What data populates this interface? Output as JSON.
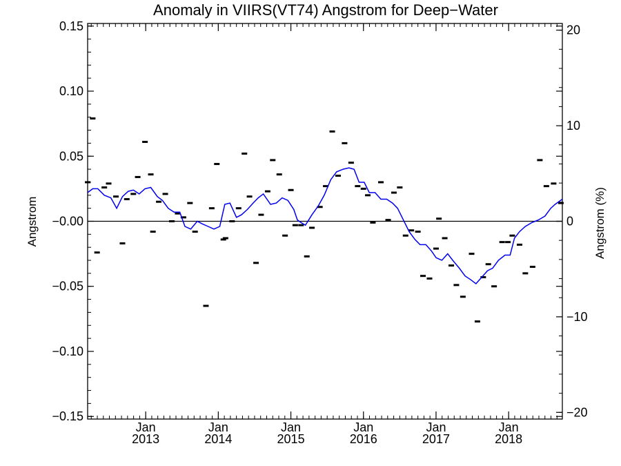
{
  "chart_data": {
    "type": "line",
    "title": "Anomaly in VIIRS(VT74) Angstrom for Deep−Water",
    "ylabel": "Angstrom",
    "y2label": "Angstrom (%)",
    "xlabel": "",
    "xlim": [
      2012.0,
      2018.54
    ],
    "ylim": [
      -0.152,
      0.152
    ],
    "y2lim": [
      -20.7,
      20.7
    ],
    "grid": false,
    "zero_line": true,
    "x_ticks": [
      {
        "month": "Jan",
        "year": "2013",
        "x": 2012.8
      },
      {
        "month": "Jan",
        "year": "2014",
        "x": 2013.8
      },
      {
        "month": "Jan",
        "year": "2015",
        "x": 2014.8
      },
      {
        "month": "Jan",
        "year": "2016",
        "x": 2015.8
      },
      {
        "month": "Jan",
        "year": "2017",
        "x": 2016.8
      },
      {
        "month": "Jan",
        "year": "2018",
        "x": 2017.8
      }
    ],
    "y_ticks": [
      {
        "value": 0.15,
        "label": "0.15"
      },
      {
        "value": 0.1,
        "label": "0.10"
      },
      {
        "value": 0.05,
        "label": "0.05"
      },
      {
        "value": 0.0,
        "label": "−0.00"
      },
      {
        "value": -0.05,
        "label": "−0.05"
      },
      {
        "value": -0.1,
        "label": "−0.10"
      },
      {
        "value": -0.15,
        "label": "−0.15"
      }
    ],
    "y2_ticks": [
      {
        "value": 20,
        "label": "20"
      },
      {
        "value": 10,
        "label": "10"
      },
      {
        "value": 0,
        "label": "0"
      },
      {
        "value": -10,
        "label": "−10"
      },
      {
        "value": -20,
        "label": "−20"
      }
    ],
    "series": [
      {
        "kind": "markers",
        "color": "#000000",
        "points": [
          [
            2012.0,
            0.03
          ],
          [
            2012.07,
            0.079
          ],
          [
            2012.13,
            -0.024
          ],
          [
            2012.23,
            0.026
          ],
          [
            2012.29,
            0.029
          ],
          [
            2012.39,
            0.019
          ],
          [
            2012.48,
            -0.017
          ],
          [
            2012.54,
            0.017
          ],
          [
            2012.63,
            0.021
          ],
          [
            2012.69,
            0.034
          ],
          [
            2012.79,
            0.061
          ],
          [
            2012.87,
            0.036
          ],
          [
            2012.9,
            -0.008
          ],
          [
            2012.98,
            0.015
          ],
          [
            2013.07,
            0.021
          ],
          [
            2013.16,
            0.0
          ],
          [
            2013.24,
            0.006
          ],
          [
            2013.32,
            0.003
          ],
          [
            2013.41,
            0.014
          ],
          [
            2013.48,
            -0.008
          ],
          [
            2013.63,
            -0.065
          ],
          [
            2013.71,
            0.01
          ],
          [
            2013.78,
            0.044
          ],
          [
            2013.87,
            -0.014
          ],
          [
            2013.9,
            -0.013
          ],
          [
            2013.99,
            0.0
          ],
          [
            2014.08,
            0.01
          ],
          [
            2014.16,
            0.052
          ],
          [
            2014.23,
            0.019
          ],
          [
            2014.32,
            -0.032
          ],
          [
            2014.39,
            0.005
          ],
          [
            2014.48,
            0.023
          ],
          [
            2014.55,
            0.047
          ],
          [
            2014.64,
            0.036
          ],
          [
            2014.72,
            -0.011
          ],
          [
            2014.8,
            0.024
          ],
          [
            2014.86,
            -0.003
          ],
          [
            2014.94,
            -0.003
          ],
          [
            2015.02,
            -0.027
          ],
          [
            2015.09,
            -0.005
          ],
          [
            2015.2,
            0.011
          ],
          [
            2015.28,
            0.027
          ],
          [
            2015.37,
            0.069
          ],
          [
            2015.45,
            0.035
          ],
          [
            2015.54,
            0.06
          ],
          [
            2015.63,
            0.045
          ],
          [
            2015.72,
            0.027
          ],
          [
            2015.8,
            0.025
          ],
          [
            2015.86,
            0.02
          ],
          [
            2015.93,
            -0.001
          ],
          [
            2016.04,
            0.03
          ],
          [
            2016.14,
            0.001
          ],
          [
            2016.22,
            0.022
          ],
          [
            2016.3,
            0.026
          ],
          [
            2016.38,
            -0.011
          ],
          [
            2016.46,
            -0.007
          ],
          [
            2016.55,
            -0.008
          ],
          [
            2016.62,
            -0.042
          ],
          [
            2016.71,
            -0.044
          ],
          [
            2016.8,
            -0.021
          ],
          [
            2016.84,
            0.002
          ],
          [
            2016.92,
            -0.013
          ],
          [
            2017.01,
            -0.034
          ],
          [
            2017.08,
            -0.049
          ],
          [
            2017.17,
            -0.058
          ],
          [
            2017.29,
            -0.025
          ],
          [
            2017.37,
            -0.077
          ],
          [
            2017.45,
            -0.043
          ],
          [
            2017.52,
            -0.033
          ],
          [
            2017.6,
            -0.05
          ],
          [
            2017.71,
            -0.016
          ],
          [
            2017.79,
            -0.016
          ],
          [
            2017.85,
            -0.011
          ],
          [
            2017.95,
            -0.018
          ],
          [
            2018.03,
            -0.04
          ],
          [
            2018.13,
            -0.035
          ],
          [
            2018.23,
            0.047
          ],
          [
            2018.32,
            0.027
          ],
          [
            2018.42,
            0.029
          ],
          [
            2018.52,
            0.014
          ]
        ]
      },
      {
        "kind": "line",
        "color": "#0000ee",
        "points": [
          [
            2012.0,
            0.022
          ],
          [
            2012.07,
            0.025
          ],
          [
            2012.14,
            0.025
          ],
          [
            2012.23,
            0.02
          ],
          [
            2012.32,
            0.018
          ],
          [
            2012.4,
            0.01
          ],
          [
            2012.48,
            0.019
          ],
          [
            2012.56,
            0.023
          ],
          [
            2012.63,
            0.024
          ],
          [
            2012.71,
            0.021
          ],
          [
            2012.79,
            0.025
          ],
          [
            2012.87,
            0.026
          ],
          [
            2012.96,
            0.019
          ],
          [
            2013.03,
            0.016
          ],
          [
            2013.11,
            0.01
          ],
          [
            2013.19,
            0.007
          ],
          [
            2013.27,
            0.007
          ],
          [
            2013.34,
            -0.004
          ],
          [
            2013.42,
            -0.006
          ],
          [
            2013.51,
            0.0
          ],
          [
            2013.58,
            -0.002
          ],
          [
            2013.66,
            -0.004
          ],
          [
            2013.74,
            -0.006
          ],
          [
            2013.82,
            -0.004
          ],
          [
            2013.89,
            0.013
          ],
          [
            2013.96,
            0.014
          ],
          [
            2014.05,
            0.003
          ],
          [
            2014.12,
            0.005
          ],
          [
            2014.2,
            0.009
          ],
          [
            2014.28,
            0.014
          ],
          [
            2014.35,
            0.018
          ],
          [
            2014.42,
            0.021
          ],
          [
            2014.52,
            0.013
          ],
          [
            2014.6,
            0.014
          ],
          [
            2014.68,
            0.018
          ],
          [
            2014.76,
            0.016
          ],
          [
            2014.84,
            0.009
          ],
          [
            2014.89,
            0.001
          ],
          [
            2014.94,
            -0.001
          ],
          [
            2015.0,
            -0.003
          ],
          [
            2015.09,
            0.005
          ],
          [
            2015.18,
            0.012
          ],
          [
            2015.26,
            0.02
          ],
          [
            2015.35,
            0.032
          ],
          [
            2015.43,
            0.038
          ],
          [
            2015.52,
            0.04
          ],
          [
            2015.6,
            0.041
          ],
          [
            2015.67,
            0.04
          ],
          [
            2015.74,
            0.03
          ],
          [
            2015.81,
            0.03
          ],
          [
            2015.88,
            0.022
          ],
          [
            2015.96,
            0.022
          ],
          [
            2016.04,
            0.017
          ],
          [
            2016.12,
            0.017
          ],
          [
            2016.2,
            0.014
          ],
          [
            2016.27,
            0.01
          ],
          [
            2016.35,
            0.001
          ],
          [
            2016.43,
            -0.008
          ],
          [
            2016.51,
            -0.014
          ],
          [
            2016.58,
            -0.018
          ],
          [
            2016.66,
            -0.018
          ],
          [
            2016.74,
            -0.023
          ],
          [
            2016.8,
            -0.028
          ],
          [
            2016.88,
            -0.03
          ],
          [
            2016.96,
            -0.025
          ],
          [
            2017.03,
            -0.03
          ],
          [
            2017.12,
            -0.036
          ],
          [
            2017.2,
            -0.042
          ],
          [
            2017.28,
            -0.045
          ],
          [
            2017.35,
            -0.048
          ],
          [
            2017.43,
            -0.043
          ],
          [
            2017.51,
            -0.038
          ],
          [
            2017.58,
            -0.036
          ],
          [
            2017.66,
            -0.03
          ],
          [
            2017.75,
            -0.026
          ],
          [
            2017.82,
            -0.026
          ],
          [
            2017.88,
            -0.013
          ],
          [
            2017.95,
            -0.008
          ],
          [
            2018.03,
            -0.004
          ],
          [
            2018.12,
            -0.001
          ],
          [
            2018.21,
            0.001
          ],
          [
            2018.3,
            0.004
          ],
          [
            2018.38,
            0.01
          ],
          [
            2018.44,
            0.013
          ],
          [
            2018.54,
            0.017
          ]
        ]
      }
    ]
  }
}
